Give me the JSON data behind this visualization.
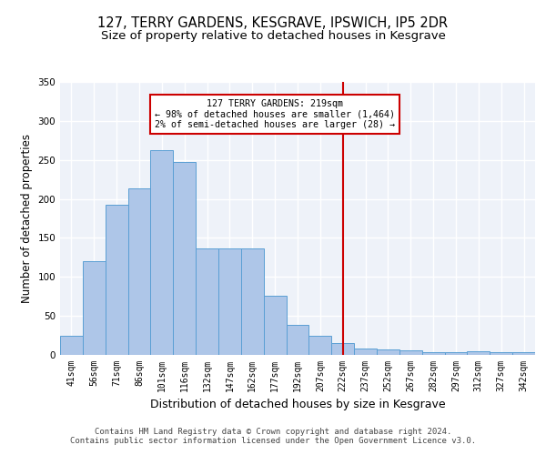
{
  "title": "127, TERRY GARDENS, KESGRAVE, IPSWICH, IP5 2DR",
  "subtitle": "Size of property relative to detached houses in Kesgrave",
  "xlabel": "Distribution of detached houses by size in Kesgrave",
  "ylabel": "Number of detached properties",
  "categories": [
    "41sqm",
    "56sqm",
    "71sqm",
    "86sqm",
    "101sqm",
    "116sqm",
    "132sqm",
    "147sqm",
    "162sqm",
    "177sqm",
    "192sqm",
    "207sqm",
    "222sqm",
    "237sqm",
    "252sqm",
    "267sqm",
    "282sqm",
    "297sqm",
    "312sqm",
    "327sqm",
    "342sqm"
  ],
  "values": [
    25,
    120,
    193,
    213,
    262,
    247,
    136,
    136,
    136,
    76,
    39,
    25,
    15,
    8,
    7,
    6,
    4,
    4,
    5,
    3,
    3
  ],
  "bar_color": "#aec6e8",
  "bar_edge_color": "#5a9fd4",
  "marker_bin_index": 12,
  "marker_color": "#cc0000",
  "annotation_text": "127 TERRY GARDENS: 219sqm\n← 98% of detached houses are smaller (1,464)\n2% of semi-detached houses are larger (28) →",
  "annotation_box_color": "#cc0000",
  "ylim": [
    0,
    350
  ],
  "yticks": [
    0,
    50,
    100,
    150,
    200,
    250,
    300,
    350
  ],
  "footer_line1": "Contains HM Land Registry data © Crown copyright and database right 2024.",
  "footer_line2": "Contains public sector information licensed under the Open Government Licence v3.0.",
  "bg_color": "#eef2f9",
  "grid_color": "#ffffff",
  "title_fontsize": 10.5,
  "subtitle_fontsize": 9.5,
  "label_fontsize": 8.5,
  "tick_fontsize": 7,
  "footer_fontsize": 6.5
}
